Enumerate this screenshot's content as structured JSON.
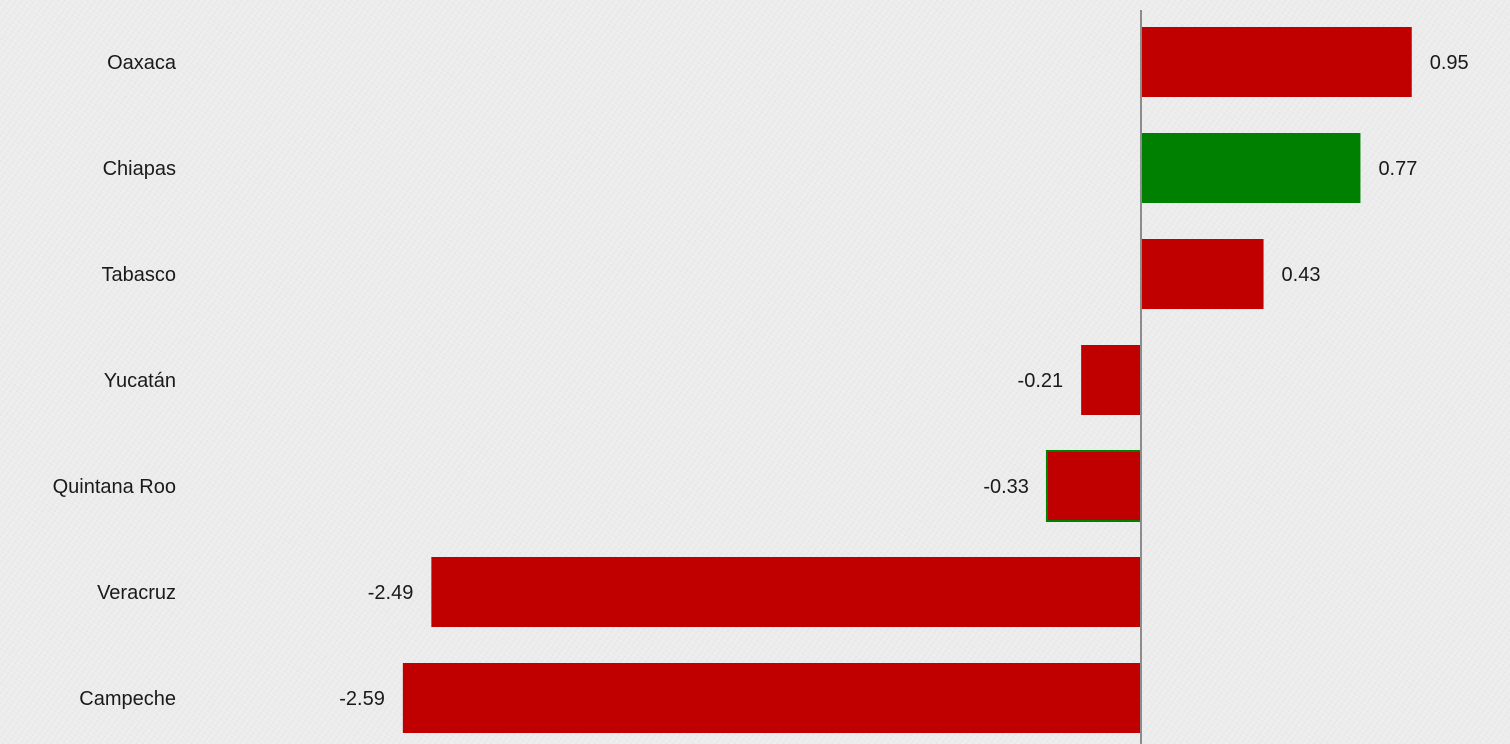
{
  "chart_data": {
    "type": "bar",
    "orientation": "horizontal",
    "title": "",
    "xlabel": "",
    "ylabel": "",
    "categories": [
      "Oaxaca",
      "Chiapas",
      "Tabasco",
      "Yucatán",
      "Quintana Roo",
      "Veracruz",
      "Campeche"
    ],
    "values": [
      0.95,
      0.77,
      0.43,
      -0.21,
      -0.33,
      -2.49,
      -2.59
    ],
    "value_labels": [
      "0.95",
      "0.77",
      "0.43",
      "-0.21",
      "-0.33",
      "-2.49",
      "-2.59"
    ],
    "bar_colors": [
      "#c00000",
      "#008000",
      "#c00000",
      "#c00000",
      "#c00000",
      "#c00000",
      "#c00000"
    ],
    "bar_outline_colors": [
      "",
      "",
      "",
      "",
      "#008000",
      "",
      ""
    ],
    "xlim": [
      -2.85,
      1.17
    ],
    "grid": false,
    "legend": "none",
    "axis_line_color": "#8c8c8c"
  }
}
